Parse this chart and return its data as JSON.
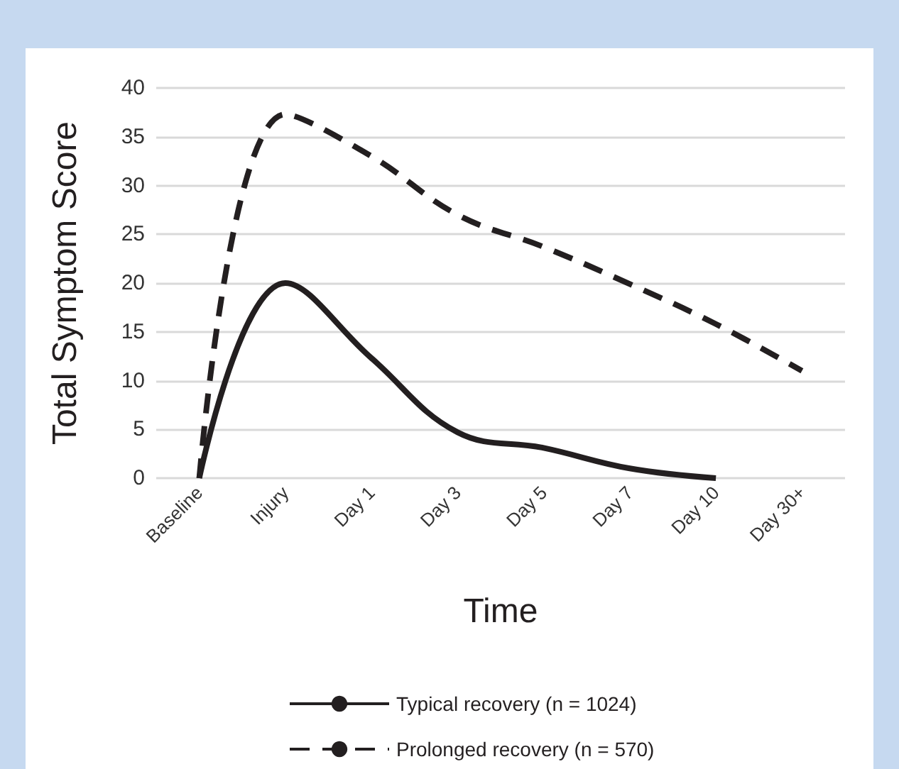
{
  "chart_data": {
    "type": "line",
    "xlabel": "Time",
    "ylabel": "Total Symptom Score",
    "categories": [
      "Baseline",
      "Injury",
      "Day 1",
      "Day 3",
      "Day 5",
      "Day 7",
      "Day 10",
      "Day 30+"
    ],
    "series": [
      {
        "name": "Typical recovery (n = 1024)",
        "color": "#231f20",
        "line_style": "solid",
        "values": [
          0,
          20,
          12.3,
          4.7,
          3.1,
          1,
          0,
          null
        ]
      },
      {
        "name": "Prolonged recovery (n = 570)",
        "color": "#231f20",
        "line_style": "dashed",
        "values": [
          0,
          37.3,
          33,
          27,
          23.7,
          19.9,
          15.8,
          11
        ]
      }
    ],
    "ylim": [
      0,
      40
    ],
    "yticks": [
      0,
      5,
      10,
      15,
      20,
      25,
      30,
      35,
      40
    ],
    "grid": "y",
    "legend": "bottom",
    "marker": "none"
  }
}
